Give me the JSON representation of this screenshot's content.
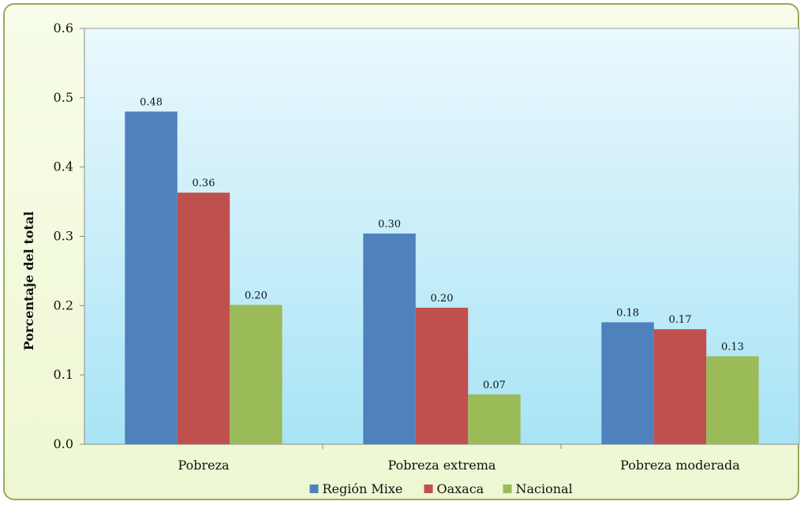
{
  "chart_data": {
    "type": "bar",
    "title": "",
    "xlabel": "",
    "ylabel": "Porcentaje del total",
    "ylim": [
      0,
      0.6
    ],
    "yticks": [
      "0.0",
      "0.1",
      "0.2",
      "0.3",
      "0.4",
      "0.5",
      "0.6"
    ],
    "grid": false,
    "legend_position": "bottom",
    "categories": [
      "Pobreza",
      "Pobreza extrema",
      "Pobreza moderada"
    ],
    "series": [
      {
        "name": "Región Mixe",
        "color": "#4f81bd",
        "values": [
          0.48,
          0.304,
          0.176
        ],
        "labels": [
          "0.48",
          "0.30",
          "0.18"
        ]
      },
      {
        "name": "Oaxaca",
        "color": "#c0504d",
        "values": [
          0.363,
          0.197,
          0.166
        ],
        "labels": [
          "0.36",
          "0.20",
          "0.17"
        ]
      },
      {
        "name": "Nacional",
        "color": "#9bbb59",
        "values": [
          0.201,
          0.072,
          0.127
        ],
        "labels": [
          "0.20",
          "0.07",
          "0.13"
        ]
      }
    ]
  }
}
